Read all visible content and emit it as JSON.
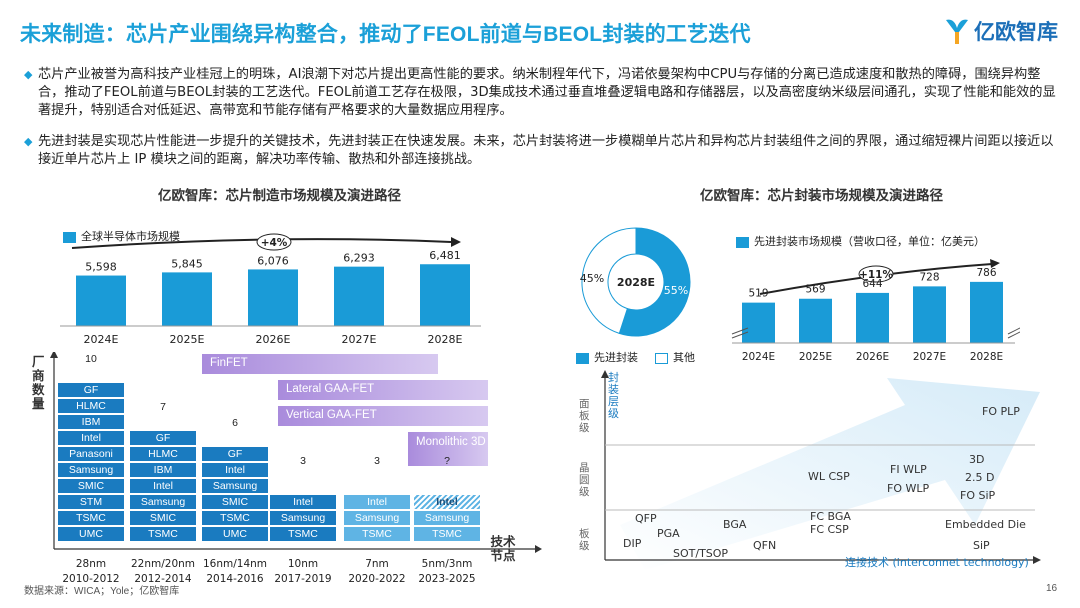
{
  "page": {
    "title": "未来制造：芯片产业围绕异构整合，推动了FEOL前道与BEOL封装的工艺迭代",
    "brand": "亿欧智库",
    "bullets": [
      "芯片产业被誉为高科技产业桂冠上的明珠，AI浪潮下对芯片提出更高性能的要求。纳米制程年代下，冯诺依曼架构中CPU与存储的分离已造成速度和散热的障碍，围绕异构整合，推动了FEOL前道与BEOL封装的工艺迭代。FEOL前道工艺存在极限，3D集成技术通过垂直堆叠逻辑电路和存储器层，以及高密度纳米级层间通孔，实现了性能和能效的显著提升，特别适合对低延迟、高带宽和节能存储有严格要求的大量数据应用程序。",
      "先进封装是实现芯片性能进一步提升的关键技术，先进封装正在快速发展。未来，芯片封装将进一步模糊单片芯片和异构芯片封装组件之间的界限，通过缩短裸片间距以接近以接近单片芯片上 IP 模块之间的距离，解决功率传输、散热和外部连接挑战。"
    ],
    "footer": "数据来源：WICA；Yole；亿欧智库",
    "page_number": "16"
  },
  "colors": {
    "accent": "#1ba0d8",
    "bar": "#1a9bd7",
    "navy": "#1c6fb8",
    "purple": "#b39ddb"
  },
  "chart_data": [
    {
      "type": "bar",
      "title": "亿欧智库：芯片制造市场规模及演进路径",
      "legend": "全球半导体市场规模",
      "categories": [
        "2024E",
        "2025E",
        "2026E",
        "2027E",
        "2028E"
      ],
      "values": [
        5598,
        5845,
        6076,
        6293,
        6481
      ],
      "labels": [
        "5,598",
        "5,845",
        "6,076",
        "6,293",
        "6,481"
      ],
      "growth": "+4%",
      "ylim": [
        0,
        7000
      ]
    },
    {
      "type": "table",
      "title": "厂商数量 / 技术节点",
      "y_label": "厂商数量",
      "x_label": "技术节点",
      "nodes": [
        {
          "node": "28nm",
          "years": "2010-2012",
          "count": "10",
          "vendors": [
            "GF",
            "HLMC",
            "IBM",
            "Intel",
            "Panasoni",
            "Samsung",
            "SMIC",
            "STM",
            "TSMC",
            "UMC"
          ]
        },
        {
          "node": "22nm/20nm",
          "years": "2012-2014",
          "count": "7",
          "vendors": [
            "GF",
            "HLMC",
            "IBM",
            "Intel",
            "Samsung",
            "SMIC",
            "TSMC"
          ]
        },
        {
          "node": "16nm/14nm",
          "years": "2014-2016",
          "count": "6",
          "vendors": [
            "GF",
            "Intel",
            "Samsung",
            "SMIC",
            "TSMC",
            "UMC"
          ]
        },
        {
          "node": "10nm",
          "years": "2017-2019",
          "count": "3",
          "vendors": [
            "Intel",
            "Samsung",
            "TSMC"
          ]
        },
        {
          "node": "7nm",
          "years": "2020-2022",
          "count": "3",
          "vendors": [
            "Intel",
            "Samsung",
            "TSMC"
          ]
        },
        {
          "node": "5nm/3nm",
          "years": "2023-2025",
          "count": "?",
          "vendors": [
            "Intel",
            "Samsung",
            "TSMC"
          ]
        }
      ],
      "technologies": [
        "FinFET",
        "Lateral GAA-FET",
        "Vertical GAA-FET",
        "Monolithic 3D"
      ]
    },
    {
      "type": "pie",
      "center_label": "2028E",
      "slices": [
        {
          "name": "先进封装",
          "value": 55,
          "label": "55%"
        },
        {
          "name": "其他",
          "value": 45,
          "label": "45%"
        }
      ]
    },
    {
      "type": "bar",
      "title": "亿欧智库：芯片封装市场规模及演进路径",
      "legend": "先进封装市场规模（营收口径，单位：亿美元）",
      "categories": [
        "2024E",
        "2025E",
        "2026E",
        "2027E",
        "2028E"
      ],
      "values": [
        519,
        569,
        644,
        728,
        786
      ],
      "labels": [
        "519",
        "569",
        "644",
        "728",
        "786"
      ],
      "growth": "+11%",
      "ylim": [
        0,
        900
      ]
    },
    {
      "type": "scatter",
      "title": "封装层级 × 连接技术",
      "y_label": "封装层级",
      "x_label": "连接技术 (interconnet technology)",
      "levels": [
        "面板级",
        "晶圆级",
        "板级"
      ],
      "items": [
        {
          "name": "QFP",
          "level": "板级"
        },
        {
          "name": "PGA",
          "level": "板级"
        },
        {
          "name": "DIP",
          "level": "板级"
        },
        {
          "name": "SOT/TSOP",
          "level": "板级"
        },
        {
          "name": "BGA",
          "level": "板级"
        },
        {
          "name": "QFN",
          "level": "板级"
        },
        {
          "name": "FC BGA",
          "level": "板级"
        },
        {
          "name": "FC CSP",
          "level": "板级"
        },
        {
          "name": "WL CSP",
          "level": "晶圆级"
        },
        {
          "name": "FI WLP",
          "level": "晶圆级"
        },
        {
          "name": "FO WLP",
          "level": "晶圆级"
        },
        {
          "name": "3D",
          "level": "晶圆级"
        },
        {
          "name": "2.5 D",
          "level": "晶圆级"
        },
        {
          "name": "FO SiP",
          "level": "晶圆级"
        },
        {
          "name": "FO PLP",
          "level": "面板级"
        },
        {
          "name": "Embedded Die",
          "level": "板级"
        },
        {
          "name": "SiP",
          "level": "板级"
        }
      ]
    }
  ],
  "right_title": "亿欧智库：芯片封装市场规模及演进路径",
  "pie_legend": [
    "先进封装",
    "其他"
  ]
}
